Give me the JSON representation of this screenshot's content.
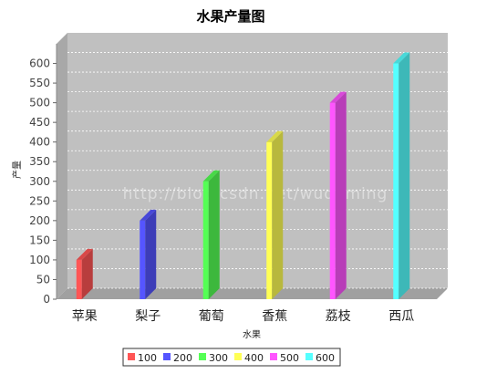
{
  "chart_data": {
    "type": "bar",
    "title": "水果产量图",
    "xlabel": "水果",
    "ylabel": "产量",
    "categories": [
      "苹果",
      "梨子",
      "葡萄",
      "香蕉",
      "荔枝",
      "西瓜"
    ],
    "values": [
      100,
      200,
      300,
      400,
      500,
      600
    ],
    "ylim": [
      0,
      650
    ],
    "yticks": [
      0,
      50,
      100,
      150,
      200,
      250,
      300,
      350,
      400,
      450,
      500,
      550,
      600
    ],
    "colors": [
      "#ff5555",
      "#5555ff",
      "#55ff55",
      "#ffff55",
      "#ff55ff",
      "#55ffff"
    ],
    "legend": {
      "position": "bottom",
      "labels": [
        "100",
        "200",
        "300",
        "400",
        "500",
        "600"
      ]
    },
    "watermark": "http://blog.csdn.net/wudaming",
    "grid": true,
    "style": "3d"
  }
}
